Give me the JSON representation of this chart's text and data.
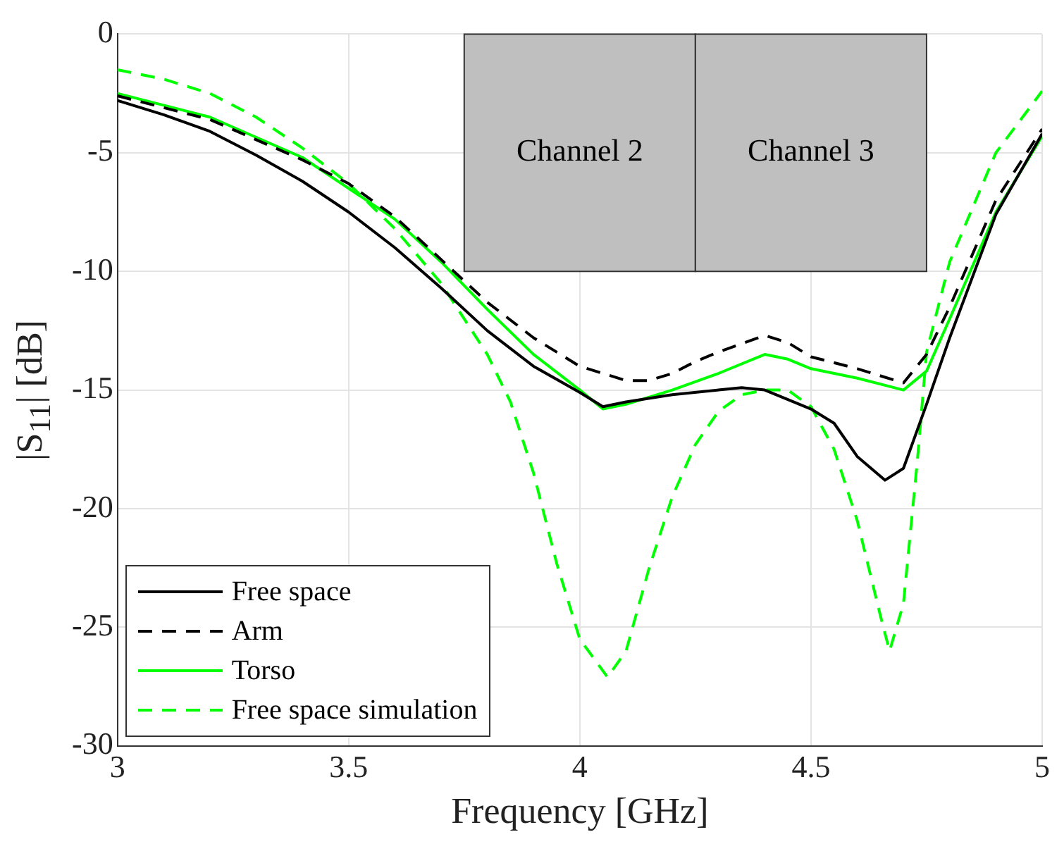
{
  "chart_data": {
    "type": "line",
    "xlabel": "Frequency [GHz]",
    "ylabel": "|S$_{11}$| [dB]",
    "xlim": [
      3,
      5
    ],
    "ylim": [
      -30,
      0
    ],
    "xticks": [
      3,
      3.5,
      4,
      4.5,
      5
    ],
    "yticks": [
      -30,
      -25,
      -20,
      -15,
      -10,
      -5,
      0
    ],
    "grid": true,
    "legend": "bottom left",
    "marker": "none",
    "bands": [
      {
        "axis": "x",
        "from": 3.75,
        "to": 4.25,
        "label": "Channel 2",
        "color": "#bfbfbf"
      },
      {
        "axis": "x",
        "from": 4.25,
        "to": 4.75,
        "label": "Channel 3",
        "color": "#bfbfbf"
      }
    ],
    "series": [
      {
        "name": "Free space",
        "color": "#000000",
        "line_style": "solid",
        "x": [
          3,
          3.1,
          3.2,
          3.3,
          3.4,
          3.5,
          3.6,
          3.7,
          3.8,
          3.9,
          4,
          4.05,
          4.1,
          4.2,
          4.3,
          4.35,
          4.4,
          4.5,
          4.55,
          4.6,
          4.66,
          4.7,
          4.75,
          4.8,
          4.9,
          5
        ],
        "values": [
          -2.8,
          -3.4,
          -4.1,
          -5.1,
          -6.2,
          -7.5,
          -9,
          -10.7,
          -12.5,
          -14,
          -15.1,
          -15.7,
          -15.5,
          -15.2,
          -15,
          -14.9,
          -15,
          -15.8,
          -16.4,
          -17.8,
          -18.8,
          -18.3,
          -15.6,
          -12.8,
          -7.6,
          -4.2
        ]
      },
      {
        "name": "Arm",
        "color": "#000000",
        "line_style": "dashed",
        "x": [
          3,
          3.2,
          3.4,
          3.5,
          3.6,
          3.7,
          3.8,
          3.9,
          4,
          4.1,
          4.15,
          4.2,
          4.25,
          4.3,
          4.4,
          4.45,
          4.5,
          4.6,
          4.7,
          4.75,
          4.8,
          4.9,
          5
        ],
        "values": [
          -2.6,
          -3.6,
          -5.3,
          -6.3,
          -7.7,
          -9.5,
          -11.3,
          -12.8,
          -14,
          -14.6,
          -14.6,
          -14.3,
          -13.8,
          -13.4,
          -12.7,
          -13,
          -13.6,
          -14.1,
          -14.7,
          -13.5,
          -11.5,
          -7,
          -4
        ]
      },
      {
        "name": "Torso",
        "color": "#00ff00",
        "line_style": "solid",
        "x": [
          3,
          3.2,
          3.4,
          3.6,
          3.7,
          3.8,
          3.9,
          4,
          4.05,
          4.1,
          4.2,
          4.3,
          4.4,
          4.45,
          4.5,
          4.6,
          4.7,
          4.75,
          4.8,
          4.9,
          5
        ],
        "values": [
          -2.5,
          -3.5,
          -5.2,
          -7.8,
          -9.6,
          -11.6,
          -13.5,
          -15,
          -15.8,
          -15.6,
          -15,
          -14.3,
          -13.5,
          -13.7,
          -14.1,
          -14.5,
          -15,
          -14.2,
          -12,
          -7.5,
          -4.3
        ]
      },
      {
        "name": "Free space simulation",
        "color": "#00ff00",
        "line_style": "dashed",
        "x": [
          3,
          3.1,
          3.2,
          3.3,
          3.4,
          3.5,
          3.6,
          3.7,
          3.8,
          3.85,
          3.9,
          3.95,
          4,
          4.06,
          4.1,
          4.15,
          4.2,
          4.25,
          4.3,
          4.35,
          4.4,
          4.45,
          4.5,
          4.55,
          4.6,
          4.65,
          4.67,
          4.7,
          4.73,
          4.75,
          4.8,
          4.9,
          5
        ],
        "values": [
          -1.5,
          -1.9,
          -2.5,
          -3.5,
          -4.8,
          -6.3,
          -8.2,
          -10.5,
          -13.5,
          -15.5,
          -18.5,
          -22.3,
          -25.5,
          -27.1,
          -26,
          -22.5,
          -19.5,
          -17.3,
          -15.9,
          -15.2,
          -15,
          -15,
          -15.7,
          -17.5,
          -20.5,
          -24.5,
          -26,
          -24,
          -18,
          -13.4,
          -9.6,
          -5,
          -2.4
        ]
      }
    ]
  }
}
